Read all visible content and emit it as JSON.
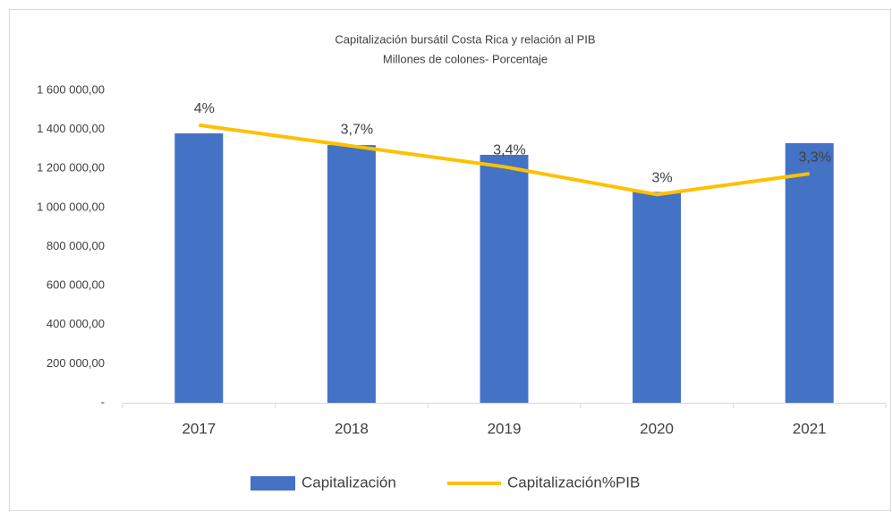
{
  "chart_data": {
    "type": "bar",
    "title": "Capitalización bursátil  Costa Rica y relación al PIB",
    "subtitle": "Millones de colones- Porcentaje",
    "categories": [
      "2017",
      "2018",
      "2019",
      "2020",
      "2021"
    ],
    "series": [
      {
        "name": "Capitalización",
        "type": "bar",
        "color": "#4472c4",
        "values": [
          1380000,
          1320000,
          1270000,
          1080000,
          1330000
        ]
      },
      {
        "name": "Capitalización%PIB",
        "type": "line",
        "axis": "y2",
        "color": "#ffc000",
        "values": [
          4,
          3.7,
          3.4,
          3,
          3.3
        ],
        "value_labels": [
          "4%",
          "3,7%",
          "3,4%",
          "3%",
          "3,3%"
        ]
      }
    ],
    "ylim": [
      0,
      1600000
    ],
    "yticks": [
      {
        "value": 0,
        "label": "-"
      },
      {
        "value": 200000,
        "label": "200 000,00"
      },
      {
        "value": 400000,
        "label": "400 000,00"
      },
      {
        "value": 600000,
        "label": "600 000,00"
      },
      {
        "value": 800000,
        "label": "800 000,00"
      },
      {
        "value": 1000000,
        "label": "1 000 000,00"
      },
      {
        "value": 1200000,
        "label": "1 200 000,00"
      },
      {
        "value": 1400000,
        "label": "1 400 000,00"
      },
      {
        "value": 1600000,
        "label": "1 600 000,00"
      }
    ],
    "y2lim": [
      0,
      4.5
    ],
    "grid": false,
    "legend": "bottom"
  }
}
